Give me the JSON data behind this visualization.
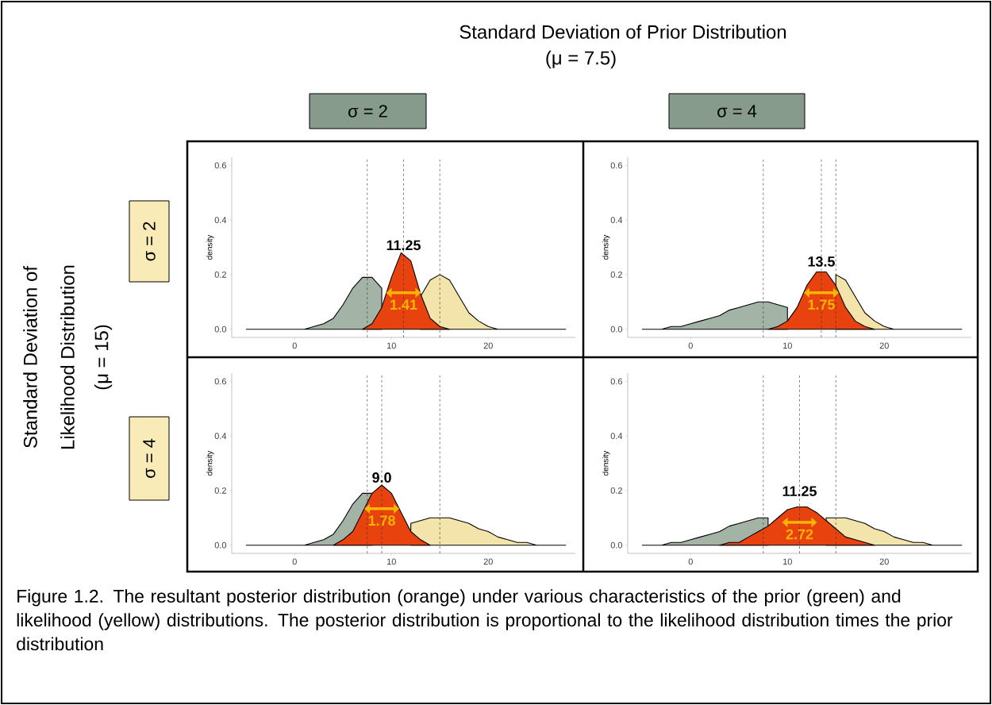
{
  "chart_data": [
    {
      "type": "area",
      "ylabel": "density",
      "series": [
        {
          "color": "#a3b3a6",
          "x": [
            -5,
            -4,
            -3,
            -2,
            -1,
            0,
            1,
            2,
            3,
            4,
            5,
            6,
            7,
            8,
            9
          ],
          "values": [
            0,
            0,
            0,
            0,
            0,
            0,
            0,
            0.01,
            0.02,
            0.04,
            0.09,
            0.15,
            0.19,
            0.19,
            0.15
          ]
        },
        {
          "color": "#f2e4ab",
          "x": [
            13,
            14,
            15,
            16,
            17,
            18,
            19,
            20,
            21,
            22,
            23,
            24,
            25,
            26,
            27,
            28
          ],
          "values": [
            0.12,
            0.18,
            0.2,
            0.18,
            0.12,
            0.06,
            0.03,
            0.01,
            0,
            0,
            0,
            0,
            0,
            0,
            0,
            0
          ]
        },
        {
          "color": "#e8430e",
          "x": [
            7,
            8,
            9,
            10,
            11,
            12,
            13,
            14,
            15,
            16
          ],
          "values": [
            0,
            0.02,
            0.08,
            0.19,
            0.28,
            0.25,
            0.13,
            0.04,
            0.01,
            0
          ]
        }
      ],
      "xlim": [
        -6.5,
        29
      ],
      "ylim": [
        -0.03,
        0.63
      ],
      "xticks": [
        0,
        10,
        20
      ],
      "yticks": [
        {
          "value": 0,
          "label": "0.0"
        },
        {
          "value": 0.2,
          "label": "0.2"
        },
        {
          "value": 0.4,
          "label": "0.4"
        },
        {
          "value": 0.6,
          "label": "0.6"
        }
      ],
      "ref_lines": [
        {
          "axis": "x",
          "value": 7.5,
          "line_style": "dashed"
        },
        {
          "axis": "x",
          "value": 11.25,
          "line_style": "dashed"
        },
        {
          "axis": "x",
          "value": 15,
          "line_style": "dashed"
        }
      ],
      "annotations": [
        {
          "text": "11.25",
          "x": 11.25,
          "y": 0.28
        },
        {
          "text": "1.41",
          "x": 11.25,
          "y": 0.09
        },
        "Standard Deviation of Prior Distribution",
        "(μ = 7.5)",
        "σ = 2",
        "Standard Deviation of",
        "Likelihood Distribution",
        "(μ = 15)",
        "σ = 2",
        "Figure 1.2.  The resultant posterior distribution (orange) under various characteristics of the prior (green) and likelihood (yellow) distributions. The posterior distribution is proportional to the likelihood distribution times the prior distribution"
      ]
    },
    {
      "type": "area",
      "ylabel": "density",
      "series": [
        {
          "color": "#a3b3a6",
          "x": [
            -5,
            -4,
            -3,
            -2,
            -1,
            0,
            1,
            2,
            3,
            4,
            5,
            6,
            7,
            8,
            9,
            10
          ],
          "values": [
            0,
            0,
            0,
            0.01,
            0.01,
            0.02,
            0.03,
            0.04,
            0.05,
            0.07,
            0.08,
            0.09,
            0.1,
            0.1,
            0.09,
            0.08
          ]
        },
        {
          "color": "#f2e4ab",
          "x": [
            15,
            16,
            17,
            18,
            19,
            20,
            21,
            22,
            23,
            24,
            25,
            26,
            27,
            28
          ],
          "values": [
            0.2,
            0.18,
            0.12,
            0.06,
            0.03,
            0.01,
            0,
            0,
            0,
            0,
            0,
            0,
            0,
            0
          ]
        },
        {
          "color": "#e8430e",
          "x": [
            8,
            9,
            10,
            11,
            12,
            13,
            14,
            15,
            16,
            17,
            18,
            19
          ],
          "values": [
            0,
            0.01,
            0.03,
            0.08,
            0.16,
            0.21,
            0.21,
            0.16,
            0.08,
            0.03,
            0.01,
            0
          ]
        }
      ],
      "xlim": [
        -6.5,
        29
      ],
      "ylim": [
        -0.03,
        0.63
      ],
      "xticks": [
        0,
        10,
        20
      ],
      "yticks": [
        {
          "value": 0,
          "label": "0.0"
        },
        {
          "value": 0.2,
          "label": "0.2"
        },
        {
          "value": 0.4,
          "label": "0.4"
        },
        {
          "value": 0.6,
          "label": "0.6"
        }
      ],
      "ref_lines": [
        {
          "axis": "x",
          "value": 7.5,
          "line_style": "dashed"
        },
        {
          "axis": "x",
          "value": 13.5,
          "line_style": "dashed"
        },
        {
          "axis": "x",
          "value": 15,
          "line_style": "dashed"
        }
      ],
      "annotations": [
        {
          "text": "13.5",
          "x": 13.5,
          "y": 0.22
        },
        {
          "text": "1.75",
          "x": 13.5,
          "y": 0.09
        },
        "σ = 4"
      ]
    },
    {
      "type": "area",
      "ylabel": "density",
      "series": [
        {
          "color": "#a3b3a6",
          "x": [
            -5,
            -4,
            -3,
            -2,
            -1,
            0,
            1,
            2,
            3,
            4,
            5,
            6,
            7,
            8
          ],
          "values": [
            0,
            0,
            0,
            0,
            0,
            0,
            0,
            0.01,
            0.02,
            0.04,
            0.09,
            0.15,
            0.19,
            0.19
          ]
        },
        {
          "color": "#f2e4ab",
          "x": [
            12,
            13,
            14,
            15,
            16,
            17,
            18,
            19,
            20,
            21,
            22,
            23,
            24,
            25,
            26,
            27,
            28
          ],
          "values": [
            0.08,
            0.09,
            0.1,
            0.1,
            0.1,
            0.09,
            0.08,
            0.06,
            0.05,
            0.03,
            0.02,
            0.01,
            0.01,
            0,
            0,
            0,
            0
          ]
        },
        {
          "color": "#e8430e",
          "x": [
            4,
            5,
            6,
            7,
            8,
            9,
            10,
            11,
            12,
            13,
            14
          ],
          "values": [
            0,
            0.02,
            0.05,
            0.12,
            0.19,
            0.22,
            0.19,
            0.12,
            0.05,
            0.02,
            0
          ]
        }
      ],
      "xlim": [
        -6.5,
        29
      ],
      "ylim": [
        -0.03,
        0.63
      ],
      "xticks": [
        0,
        10,
        20
      ],
      "yticks": [
        {
          "value": 0,
          "label": "0.0"
        },
        {
          "value": 0.2,
          "label": "0.2"
        },
        {
          "value": 0.4,
          "label": "0.4"
        },
        {
          "value": 0.6,
          "label": "0.6"
        }
      ],
      "ref_lines": [
        {
          "axis": "x",
          "value": 7.5,
          "line_style": "dashed"
        },
        {
          "axis": "x",
          "value": 9.0,
          "line_style": "dashed"
        },
        {
          "axis": "x",
          "value": 15,
          "line_style": "dashed"
        }
      ],
      "annotations": [
        {
          "text": "9.0",
          "x": 9.0,
          "y": 0.22
        },
        {
          "text": "1.78",
          "x": 9.0,
          "y": 0.09
        },
        "σ = 4"
      ]
    },
    {
      "type": "area",
      "ylabel": "density",
      "series": [
        {
          "color": "#a3b3a6",
          "x": [
            -5,
            -4,
            -3,
            -2,
            -1,
            0,
            1,
            2,
            3,
            4,
            5,
            6,
            7,
            8
          ],
          "values": [
            0,
            0,
            0,
            0.01,
            0.01,
            0.02,
            0.03,
            0.04,
            0.05,
            0.07,
            0.08,
            0.09,
            0.1,
            0.1
          ]
        },
        {
          "color": "#f2e4ab",
          "x": [
            14,
            15,
            16,
            17,
            18,
            19,
            20,
            21,
            22,
            23,
            24,
            25,
            26,
            27,
            28
          ],
          "values": [
            0.1,
            0.1,
            0.1,
            0.09,
            0.08,
            0.06,
            0.05,
            0.03,
            0.02,
            0.01,
            0.01,
            0,
            0,
            0,
            0
          ]
        },
        {
          "color": "#e8430e",
          "x": [
            3,
            4,
            5,
            6,
            7,
            8,
            9,
            10,
            11,
            12,
            13,
            14,
            15,
            16,
            17,
            18,
            19
          ],
          "values": [
            0,
            0.01,
            0.01,
            0.03,
            0.05,
            0.07,
            0.1,
            0.13,
            0.14,
            0.14,
            0.12,
            0.09,
            0.06,
            0.03,
            0.02,
            0.01,
            0
          ]
        }
      ],
      "xlim": [
        -6.5,
        29
      ],
      "ylim": [
        -0.03,
        0.63
      ],
      "xticks": [
        0,
        10,
        20
      ],
      "yticks": [
        {
          "value": 0,
          "label": "0.0"
        },
        {
          "value": 0.2,
          "label": "0.2"
        },
        {
          "value": 0.4,
          "label": "0.4"
        },
        {
          "value": 0.6,
          "label": "0.6"
        }
      ],
      "ref_lines": [
        {
          "axis": "x",
          "value": 7.5,
          "line_style": "dashed"
        },
        {
          "axis": "x",
          "value": 11.25,
          "line_style": "dashed"
        },
        {
          "axis": "x",
          "value": 15,
          "line_style": "dashed"
        }
      ],
      "annotations": [
        {
          "text": "11.25",
          "x": 11.25,
          "y": 0.17
        },
        {
          "text": "2.72",
          "x": 11.25,
          "y": 0.04
        }
      ]
    }
  ]
}
